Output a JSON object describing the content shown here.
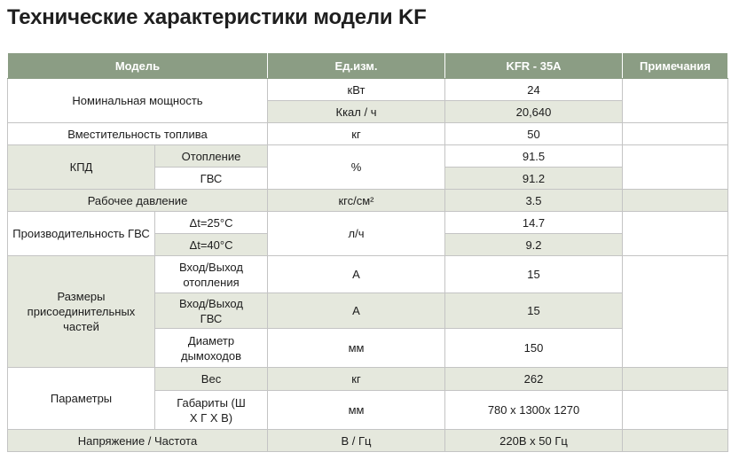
{
  "title": "Технические характеристики модели KF",
  "headers": {
    "model": "Модель",
    "unit": "Ед.изм.",
    "value": "KFR - 35A",
    "notes": "Примечания"
  },
  "rows": {
    "power": {
      "label": "Номинальная мощность",
      "unit1": "кВт",
      "value1": "24",
      "unit2": "Ккал / ч",
      "value2": "20,640"
    },
    "fuel": {
      "label": "Вместительность топлива",
      "unit": "кг",
      "value": "50"
    },
    "kpd": {
      "label": "КПД",
      "sub1": "Отопление",
      "sub2": "ГВС",
      "unit": "%",
      "value1": "91.5",
      "value2": "91.2"
    },
    "pressure": {
      "label": "Рабочее давление",
      "unit": "кгс/см²",
      "value": "3.5"
    },
    "dhw": {
      "label": "Производительность ГВС",
      "sub1": "Δt=25°C",
      "sub2": "Δt=40°C",
      "unit": "л/ч",
      "value1": "14.7",
      "value2": "9.2"
    },
    "sizes": {
      "label": "Размеры присоединительных частей",
      "sub1": "Вход/Выход отопления",
      "unit1": "А",
      "value1": "15",
      "sub2": "Вход/Выход ГВС",
      "unit2": "А",
      "value2": "15",
      "sub3": "Диаметр дымоходов",
      "unit3": "мм",
      "value3": "150"
    },
    "params": {
      "label": "Параметры",
      "sub1": "Вес",
      "unit1": "кг",
      "value1": "262",
      "sub2": "Габариты (Ш Х Г Х В)",
      "unit2": "мм",
      "value2": "780 x 1300x 1270"
    },
    "voltage": {
      "label": "Напряжение / Частота",
      "unit": "В / Гц",
      "value": "220В x 50 Гц"
    }
  }
}
